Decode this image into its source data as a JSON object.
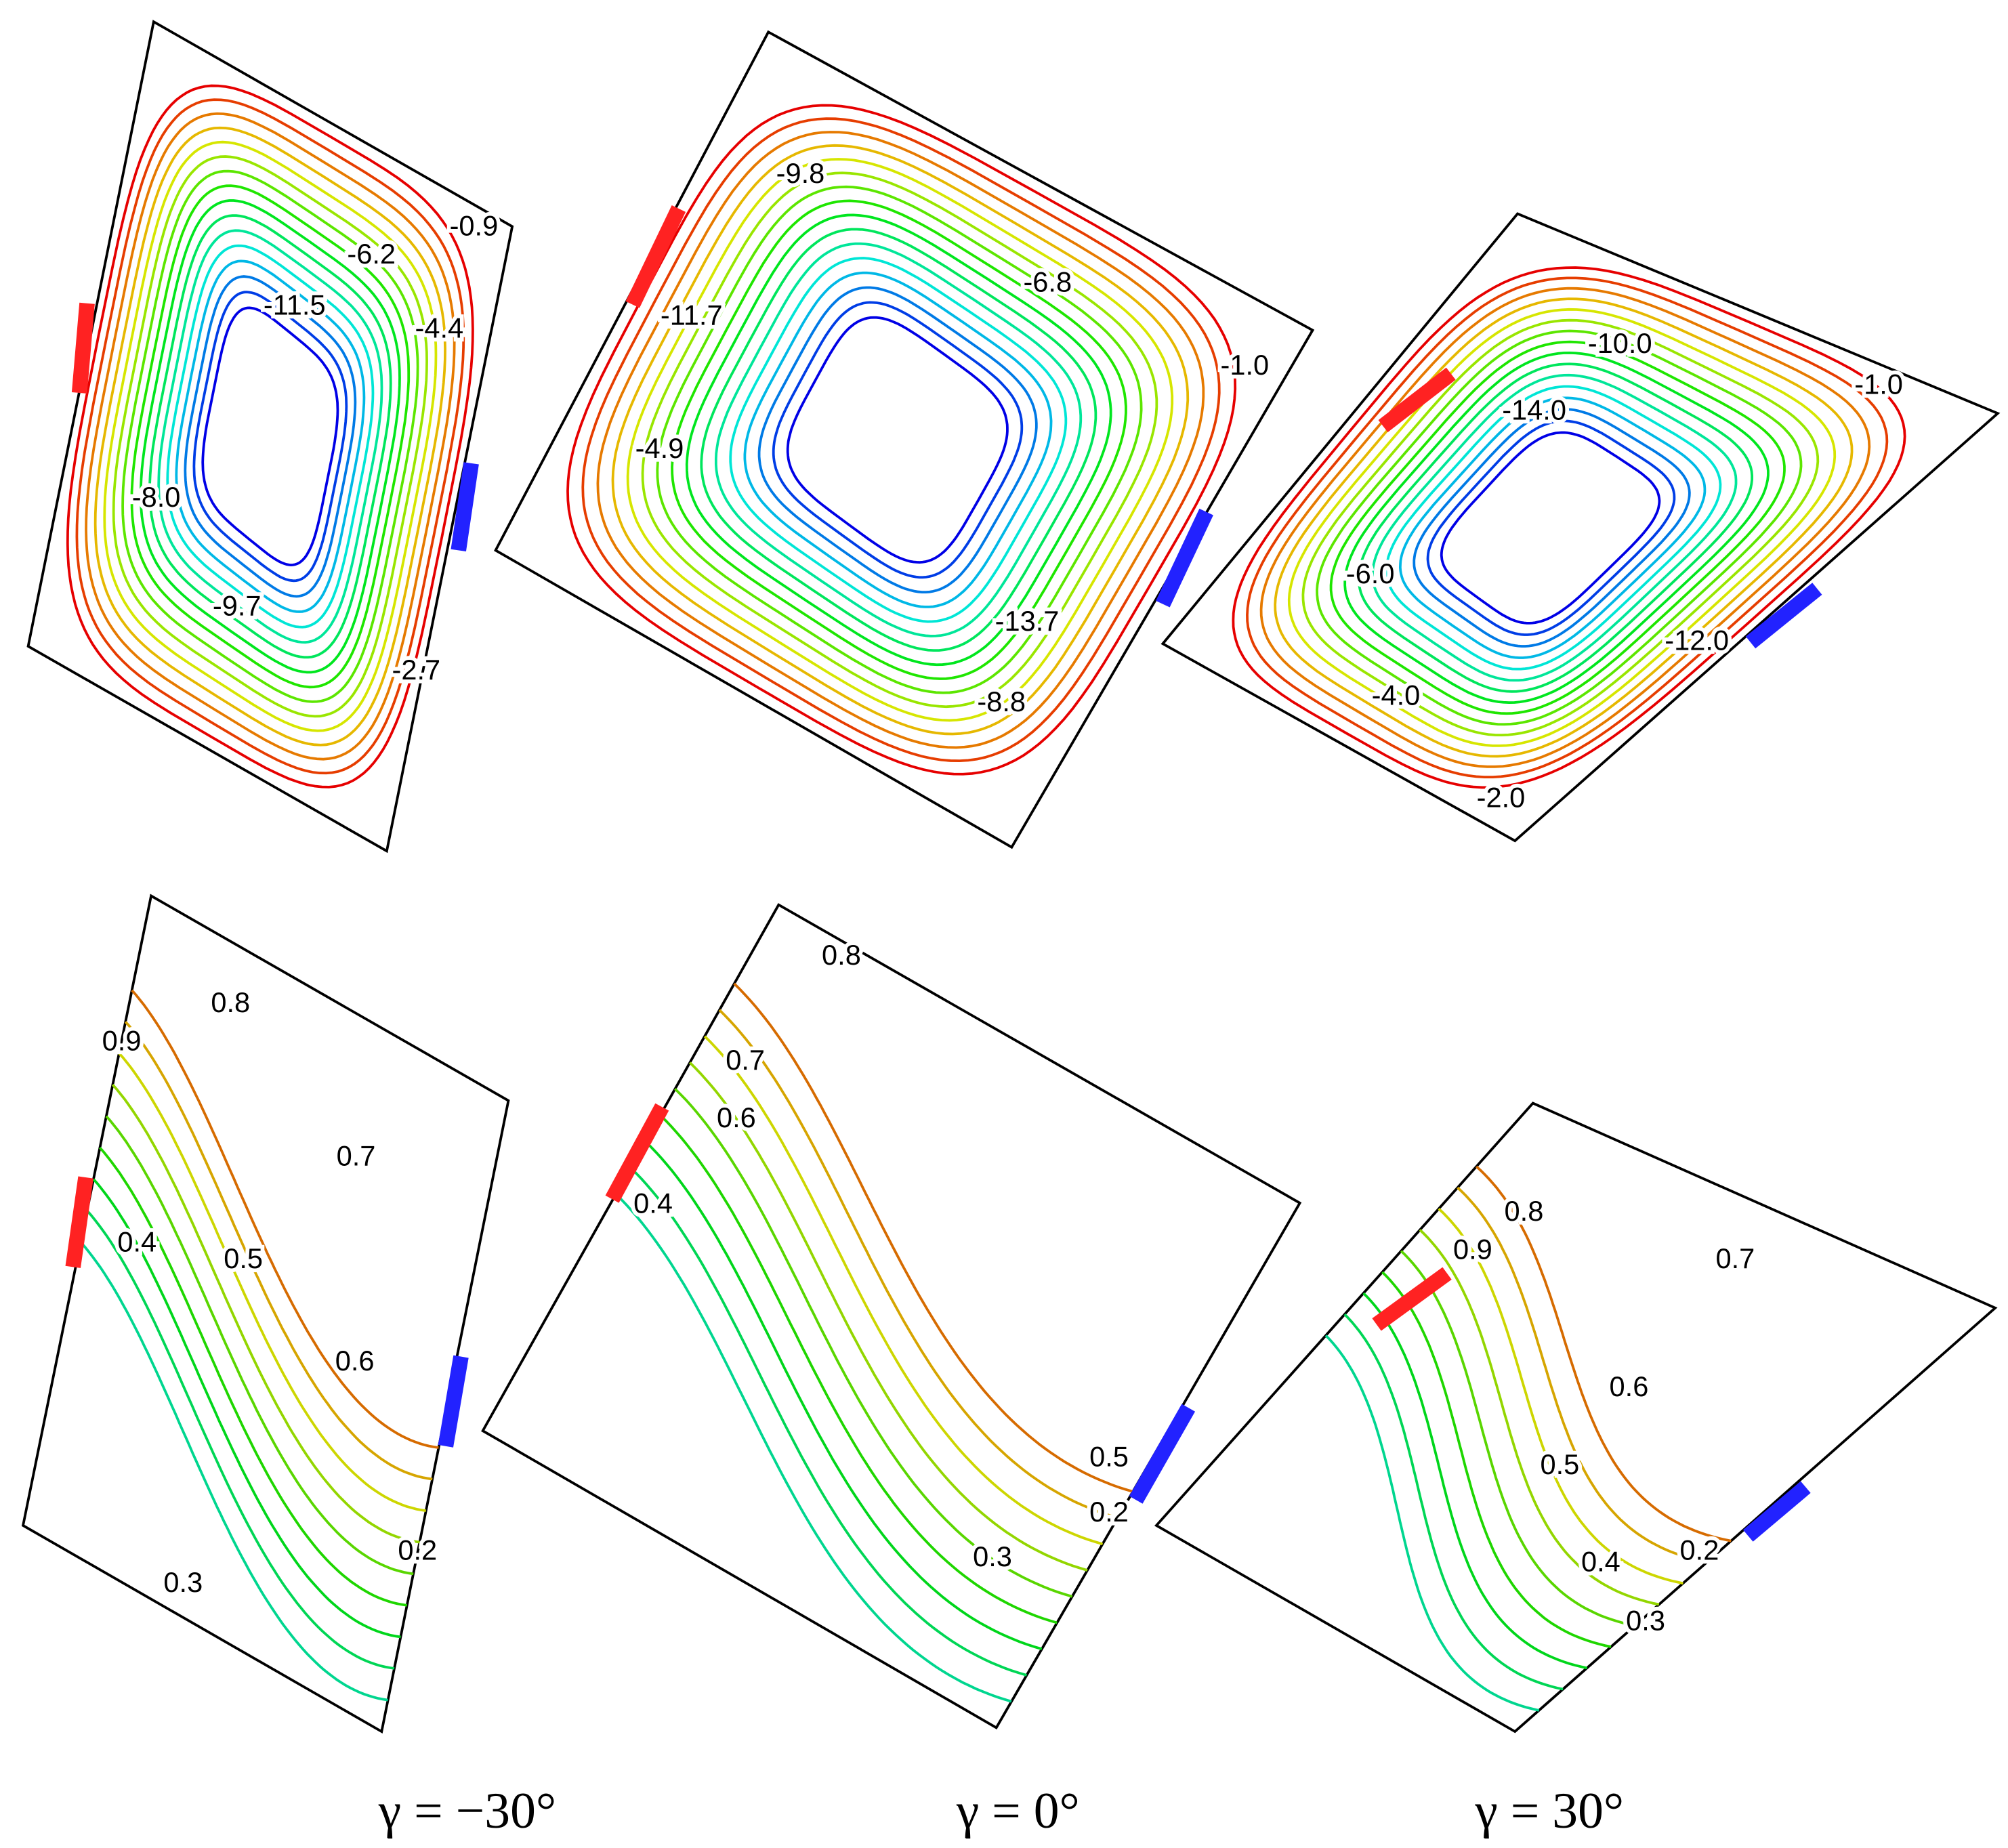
{
  "panels": [
    {
      "contour_labels": [
        "-0.9",
        "-6.2",
        "-4.4",
        "-11.5",
        "-8.0",
        "-9.7",
        "-2.7"
      ]
    },
    {
      "contour_labels": [
        "-9.8",
        "-6.8",
        "-1.0",
        "-11.7",
        "-4.9",
        "-13.7",
        "-8.8"
      ]
    },
    {
      "contour_labels": [
        "-10.0",
        "-14.0",
        "-1.0",
        "-6.0",
        "-12.0",
        "-4.0",
        "-2.0"
      ]
    },
    {
      "contour_labels": [
        "0.8",
        "0.9",
        "0.7",
        "0.4",
        "0.5",
        "0.6",
        "0.2",
        "0.3"
      ]
    },
    {
      "contour_labels": [
        "0.8",
        "0.7",
        "0.6",
        "0.4",
        "0.5",
        "0.2",
        "0.3"
      ]
    },
    {
      "contour_labels": [
        "0.8",
        "0.9",
        "0.7",
        "0.6",
        "0.5",
        "0.4",
        "0.2",
        "0.3"
      ]
    }
  ],
  "captions": [
    "γ = −30°",
    "γ = 0°",
    "γ = 30°"
  ]
}
